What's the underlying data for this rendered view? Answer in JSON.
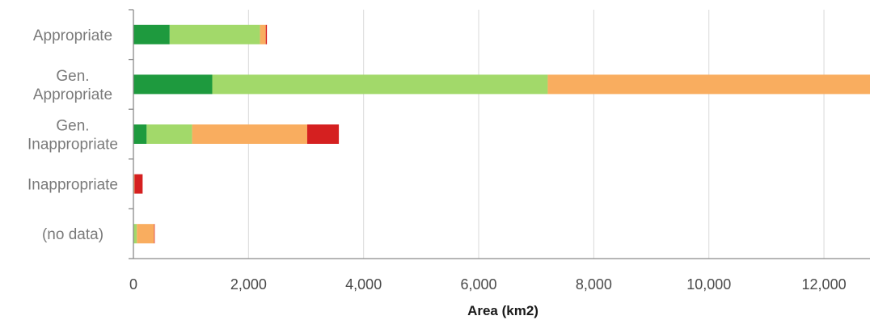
{
  "chart_data": {
    "type": "bar",
    "orientation": "horizontal",
    "stacked": true,
    "categories": [
      "Appropriate",
      "Gen. Appropriate",
      "Gen. Inappropriate",
      "Inappropriate",
      "(no data)"
    ],
    "category_lines": [
      [
        "Appropriate"
      ],
      [
        "Gen.",
        "Appropriate"
      ],
      [
        "Gen.",
        "Inappropriate"
      ],
      [
        "Inappropriate"
      ],
      [
        "(no data)"
      ]
    ],
    "series": [
      {
        "color": "#1e9a3e",
        "values": [
          630,
          1370,
          230,
          0,
          0
        ]
      },
      {
        "color": "#a2d96a",
        "values": [
          1570,
          5830,
          790,
          0,
          60
        ]
      },
      {
        "color": "#f9ad5f",
        "values": [
          100,
          5600,
          2000,
          20,
          300
        ]
      },
      {
        "color": "#d52020",
        "values": [
          20,
          0,
          550,
          140,
          10
        ]
      }
    ],
    "xlim": [
      0,
      12800
    ],
    "xticks": [
      0,
      2000,
      4000,
      6000,
      8000,
      10000,
      12000
    ],
    "xtick_labels": [
      "0",
      "2,000",
      "4,000",
      "6,000",
      "8,000",
      "10,000",
      "12,000"
    ],
    "xlabel": "Area (km2)",
    "grid": "vertical",
    "legend": "none"
  }
}
